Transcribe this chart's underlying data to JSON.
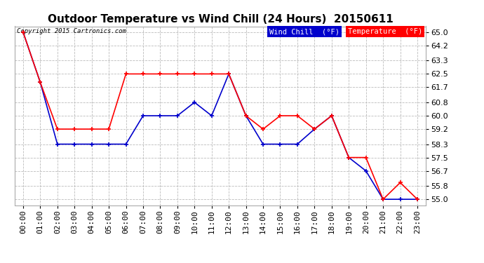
{
  "title": "Outdoor Temperature vs Wind Chill (24 Hours)  20150611",
  "copyright": "Copyright 2015 Cartronics.com",
  "legend_wind_chill": "Wind Chill  (°F)",
  "legend_temp": "Temperature  (°F)",
  "hours": [
    0,
    1,
    2,
    3,
    4,
    5,
    6,
    7,
    8,
    9,
    10,
    11,
    12,
    13,
    14,
    15,
    16,
    17,
    18,
    19,
    20,
    21,
    22,
    23
  ],
  "x_labels": [
    "00:00",
    "01:00",
    "02:00",
    "03:00",
    "04:00",
    "05:00",
    "06:00",
    "07:00",
    "08:00",
    "09:00",
    "10:00",
    "11:00",
    "12:00",
    "13:00",
    "14:00",
    "15:00",
    "16:00",
    "17:00",
    "18:00",
    "19:00",
    "20:00",
    "21:00",
    "22:00",
    "23:00"
  ],
  "temperature": [
    65.0,
    62.0,
    59.2,
    59.2,
    59.2,
    59.2,
    62.5,
    62.5,
    62.5,
    62.5,
    62.5,
    62.5,
    62.5,
    60.0,
    59.2,
    60.0,
    60.0,
    59.2,
    60.0,
    57.5,
    57.5,
    55.0,
    56.0,
    55.0
  ],
  "wind_chill": [
    65.0,
    62.0,
    58.3,
    58.3,
    58.3,
    58.3,
    58.3,
    60.0,
    60.0,
    60.0,
    60.8,
    60.0,
    62.5,
    60.0,
    58.3,
    58.3,
    58.3,
    59.2,
    60.0,
    57.5,
    56.7,
    55.0,
    55.0,
    55.0
  ],
  "temp_color": "#ff0000",
  "wind_chill_color": "#0000cc",
  "yticks": [
    55.0,
    55.8,
    56.7,
    57.5,
    58.3,
    59.2,
    60.0,
    60.8,
    61.7,
    62.5,
    63.3,
    64.2,
    65.0
  ],
  "ymin": 54.65,
  "ymax": 65.35,
  "bg_color": "#ffffff",
  "plot_bg_color": "#ffffff",
  "grid_color": "#bbbbbb",
  "title_fontsize": 11,
  "tick_fontsize": 8,
  "legend_fontsize": 7.5,
  "copyright_fontsize": 6.5
}
